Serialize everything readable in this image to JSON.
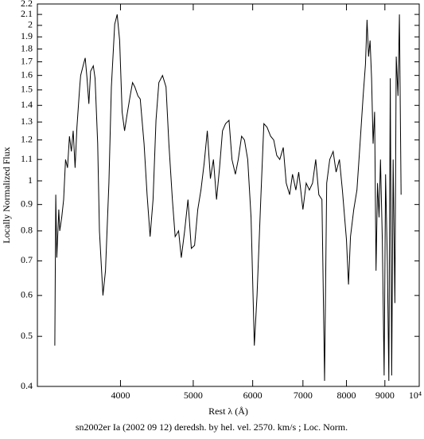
{
  "chart_data": {
    "type": "line",
    "xlabel": "Rest λ (Å)",
    "ylabel": "Locally Normalized Flux",
    "caption": "sn2002er Ia (2002 09 12) deredsh. by hel. vel.  2570. km/s ;  Loc. Norm.",
    "xscale": "log",
    "yscale": "log",
    "color": "#000000",
    "xlim": [
      3100,
      10000
    ],
    "ylim": [
      0.4,
      2.2
    ],
    "xticks": [
      4000,
      5000,
      6000,
      7000,
      8000,
      9000,
      {
        "value": 10000,
        "label": "10⁴"
      }
    ],
    "yticks": [
      0.4,
      0.5,
      0.6,
      0.7,
      0.8,
      0.9,
      1,
      1.1,
      1.2,
      1.3,
      1.4,
      1.5,
      1.6,
      1.7,
      1.8,
      1.9,
      2,
      2.1,
      2.2
    ],
    "x": [
      3270,
      3280,
      3290,
      3310,
      3320,
      3340,
      3360,
      3380,
      3400,
      3420,
      3440,
      3460,
      3480,
      3500,
      3530,
      3540,
      3570,
      3590,
      3610,
      3630,
      3650,
      3680,
      3700,
      3730,
      3750,
      3790,
      3820,
      3860,
      3890,
      3930,
      3960,
      3990,
      4020,
      4050,
      4080,
      4120,
      4150,
      4180,
      4220,
      4250,
      4300,
      4340,
      4380,
      4420,
      4460,
      4500,
      4550,
      4600,
      4640,
      4690,
      4730,
      4780,
      4820,
      4870,
      4920,
      4970,
      5020,
      5070,
      5120,
      5170,
      5220,
      5270,
      5320,
      5370,
      5420,
      5470,
      5520,
      5580,
      5630,
      5690,
      5740,
      5800,
      5850,
      5910,
      5970,
      6030,
      6080,
      6150,
      6210,
      6270,
      6340,
      6400,
      6460,
      6520,
      6590,
      6650,
      6720,
      6780,
      6850,
      6910,
      7000,
      7070,
      7140,
      7210,
      7280,
      7350,
      7420,
      7480,
      7530,
      7600,
      7680,
      7750,
      7830,
      7900,
      8000,
      8050,
      8100,
      8180,
      8260,
      8340,
      8420,
      8480,
      8520,
      8560,
      8600,
      8640,
      8680,
      8720,
      8760,
      8800,
      8840,
      8880,
      8930,
      8980,
      9020,
      9070,
      9110,
      9150,
      9190,
      9230,
      9280,
      9320,
      9370,
      9410,
      9460
    ],
    "series": [
      {
        "name": "sn2002er",
        "color": "#000000",
        "values": [
          0.48,
          0.94,
          0.71,
          0.88,
          0.8,
          0.85,
          0.92,
          1.1,
          1.06,
          1.22,
          1.14,
          1.25,
          1.06,
          1.27,
          1.52,
          1.6,
          1.68,
          1.73,
          1.58,
          1.41,
          1.63,
          1.67,
          1.58,
          1.18,
          0.8,
          0.6,
          0.67,
          0.99,
          1.52,
          2.01,
          2.1,
          1.87,
          1.36,
          1.25,
          1.34,
          1.46,
          1.55,
          1.52,
          1.46,
          1.44,
          1.18,
          0.94,
          0.78,
          0.92,
          1.31,
          1.55,
          1.6,
          1.52,
          1.18,
          0.92,
          0.78,
          0.8,
          0.71,
          0.8,
          0.92,
          0.74,
          0.75,
          0.88,
          0.96,
          1.08,
          1.25,
          1.01,
          1.1,
          0.92,
          1.06,
          1.25,
          1.29,
          1.31,
          1.1,
          1.03,
          1.1,
          1.22,
          1.2,
          1.1,
          0.85,
          0.48,
          0.6,
          0.92,
          1.29,
          1.27,
          1.22,
          1.2,
          1.12,
          1.1,
          1.16,
          0.99,
          0.94,
          1.03,
          0.96,
          1.04,
          0.88,
          0.99,
          0.96,
          0.99,
          1.1,
          0.94,
          0.92,
          0.41,
          0.99,
          1.1,
          1.14,
          1.04,
          1.1,
          0.96,
          0.77,
          0.63,
          0.78,
          0.88,
          0.96,
          1.18,
          1.46,
          1.68,
          2.05,
          1.74,
          1.87,
          1.58,
          1.18,
          1.36,
          0.67,
          0.99,
          0.85,
          1.1,
          0.77,
          0.42,
          1.03,
          0.69,
          0.41,
          1.58,
          0.42,
          1.1,
          0.58,
          1.74,
          1.46,
          2.1,
          0.94
        ]
      }
    ]
  }
}
